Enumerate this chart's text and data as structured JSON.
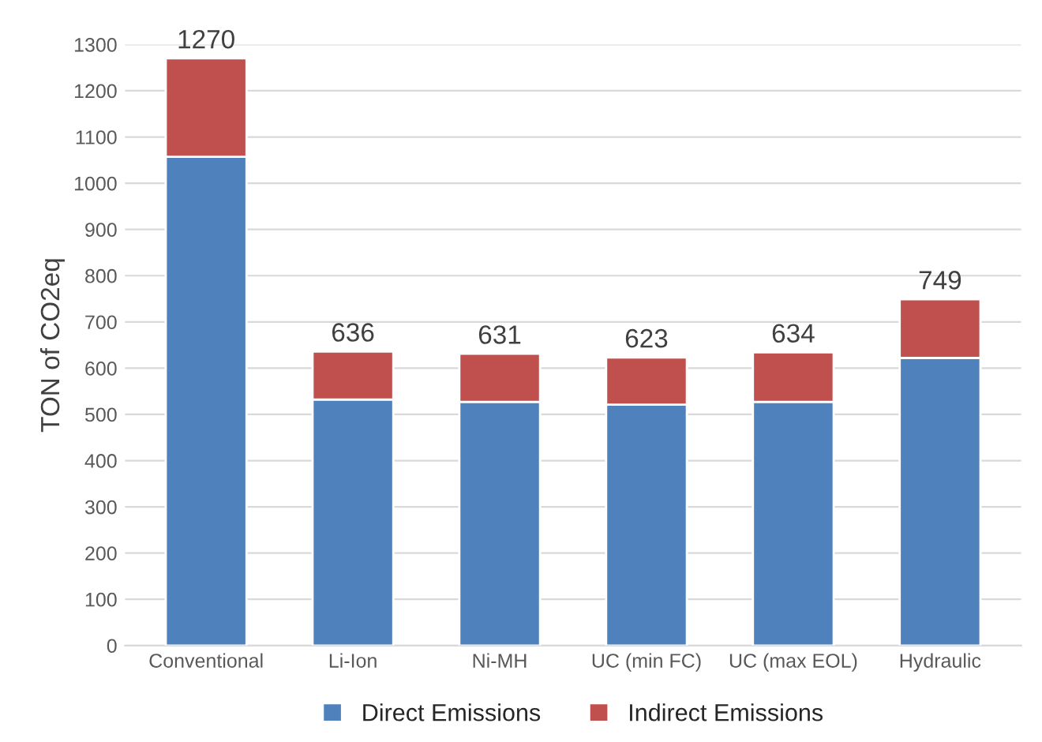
{
  "chart_data": {
    "type": "bar",
    "stacked": true,
    "ylabel": "TON of CO2eq",
    "categories": [
      "Conventional",
      "Li-Ion",
      "Ni-MH",
      "UC (min FC)",
      "UC (max EOL)",
      "Hydraulic"
    ],
    "series": [
      {
        "name": "Direct Emissions",
        "color": "#4f81bd",
        "values": [
          1057,
          532,
          527,
          521,
          527,
          622
        ]
      },
      {
        "name": "Indirect Emissions",
        "color": "#c0504d",
        "values": [
          213,
          104,
          104,
          102,
          107,
          127
        ]
      }
    ],
    "totals": [
      "1270",
      "636",
      "631",
      "623",
      "634",
      "749"
    ],
    "ylim": [
      0,
      1300
    ],
    "yticks": [
      0,
      100,
      200,
      300,
      400,
      500,
      600,
      700,
      800,
      900,
      1000,
      1100,
      1200,
      1300
    ],
    "grid": "y",
    "legend": "bottom"
  }
}
